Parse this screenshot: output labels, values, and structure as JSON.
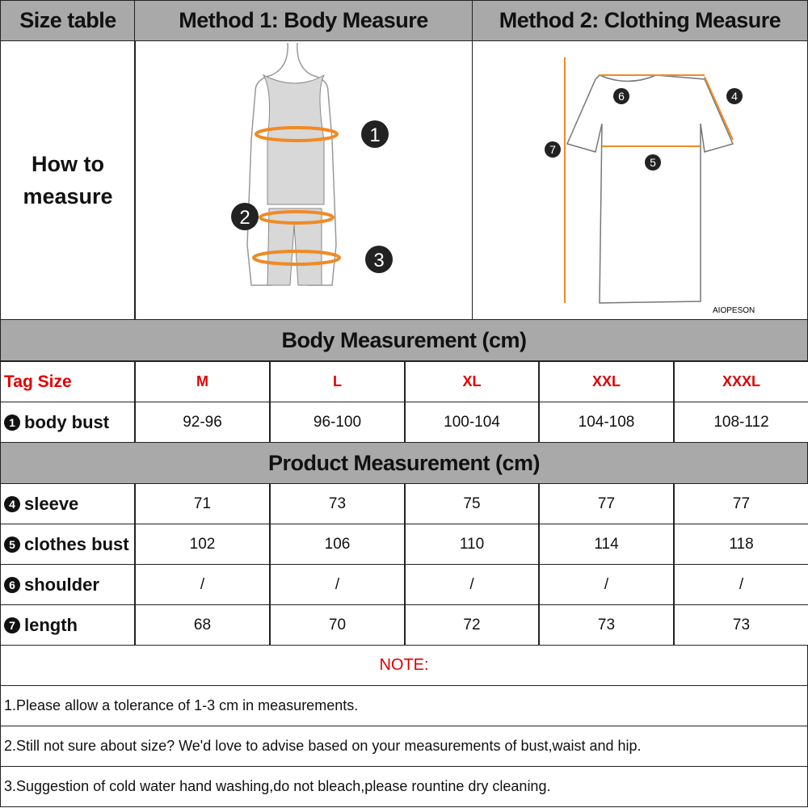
{
  "header": {
    "col1": "Size table",
    "col2": "Method 1: Body  Measure",
    "col3": "Method 2: Clothing Measure"
  },
  "how_to": "How to measure",
  "body_diagram": {
    "markers": [
      "1",
      "2",
      "3"
    ]
  },
  "shirt_diagram": {
    "markers": [
      "4",
      "5",
      "6",
      "7"
    ],
    "brand": "AIOPESON"
  },
  "colors": {
    "header_bg": "#a9a9a9",
    "accent": "#e00000",
    "measure_line": "#f08a24"
  },
  "body_section": {
    "title": "Body Measurement (cm)",
    "tag_label": "Tag Size",
    "sizes": [
      "M",
      "L",
      "XL",
      "XXL",
      "XXXL"
    ],
    "rows": [
      {
        "num": "1",
        "label": "body bust",
        "values": [
          "92-96",
          "96-100",
          "100-104",
          "104-108",
          "108-112"
        ]
      }
    ]
  },
  "product_section": {
    "title": "Product Measurement (cm)",
    "rows": [
      {
        "num": "4",
        "label": "sleeve",
        "values": [
          "71",
          "73",
          "75",
          "77",
          "77"
        ]
      },
      {
        "num": "5",
        "label": "clothes bust",
        "values": [
          "102",
          "106",
          "110",
          "114",
          "118"
        ]
      },
      {
        "num": "6",
        "label": "shoulder",
        "values": [
          "/",
          "/",
          "/",
          "/",
          "/"
        ]
      },
      {
        "num": "7",
        "label": "length",
        "values": [
          "68",
          "70",
          "72",
          "73",
          "73"
        ]
      }
    ]
  },
  "notes": {
    "title": "NOTE:",
    "items": [
      "1.Please allow a tolerance of 1-3 cm in measurements.",
      "2.Still not sure about size? We'd love to advise based on your measurements of bust,waist and hip.",
      "3.Suggestion of cold water hand washing,do not bleach,please rountine dry cleaning."
    ]
  }
}
